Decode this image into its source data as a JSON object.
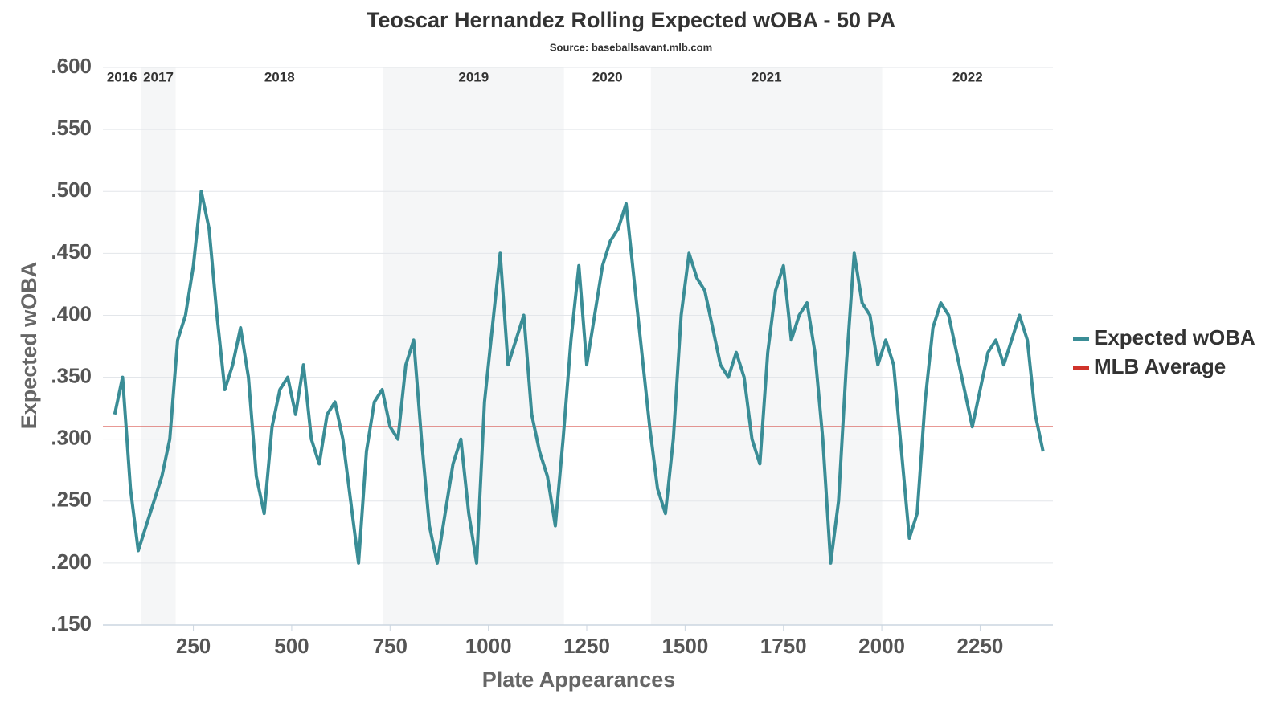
{
  "chart_data": {
    "type": "line",
    "title": "Teoscar Hernandez Rolling Expected wOBA - 50 PA",
    "subtitle": "Source: baseballsavant.mlb.com",
    "x_label": "Plate Appearances",
    "y_label": "Expected wOBA",
    "xlim": [
      20,
      2435
    ],
    "ylim": [
      0.15,
      0.6
    ],
    "xticks": [
      250,
      500,
      750,
      1000,
      1250,
      1500,
      1750,
      2000,
      2250
    ],
    "yticks": [
      {
        "value": 0.15,
        "label": ".150"
      },
      {
        "value": 0.2,
        "label": ".200"
      },
      {
        "value": 0.25,
        "label": ".250"
      },
      {
        "value": 0.3,
        "label": ".300"
      },
      {
        "value": 0.35,
        "label": ".350"
      },
      {
        "value": 0.4,
        "label": ".400"
      },
      {
        "value": 0.45,
        "label": ".450"
      },
      {
        "value": 0.5,
        "label": ".500"
      },
      {
        "value": 0.55,
        "label": ".550"
      },
      {
        "value": 0.6,
        "label": ".600"
      }
    ],
    "grid": true,
    "legend": "right",
    "seasons": [
      {
        "name": "2016",
        "start": 20,
        "end": 117,
        "shaded": false
      },
      {
        "name": "2017",
        "start": 117,
        "end": 205,
        "shaded": true
      },
      {
        "name": "2018",
        "start": 205,
        "end": 733,
        "shaded": false
      },
      {
        "name": "2019",
        "start": 733,
        "end": 1192,
        "shaded": true
      },
      {
        "name": "2020",
        "start": 1192,
        "end": 1413,
        "shaded": false
      },
      {
        "name": "2021",
        "start": 1413,
        "end": 2001,
        "shaded": true
      },
      {
        "name": "2022",
        "start": 2001,
        "end": 2435,
        "shaded": false
      }
    ],
    "reference_line": {
      "name": "MLB Average",
      "value": 0.31,
      "color": "#d0332b"
    },
    "x": [
      50,
      70,
      90,
      110,
      130,
      150,
      170,
      190,
      210,
      230,
      250,
      270,
      290,
      310,
      330,
      350,
      370,
      390,
      410,
      430,
      450,
      470,
      490,
      510,
      530,
      550,
      570,
      590,
      610,
      630,
      650,
      670,
      690,
      710,
      730,
      750,
      770,
      790,
      810,
      830,
      850,
      870,
      890,
      910,
      930,
      950,
      970,
      990,
      1010,
      1030,
      1050,
      1070,
      1090,
      1110,
      1130,
      1150,
      1170,
      1190,
      1210,
      1230,
      1250,
      1270,
      1290,
      1310,
      1330,
      1350,
      1370,
      1390,
      1410,
      1430,
      1450,
      1470,
      1490,
      1510,
      1530,
      1550,
      1570,
      1590,
      1610,
      1630,
      1650,
      1670,
      1690,
      1710,
      1730,
      1750,
      1770,
      1790,
      1810,
      1830,
      1850,
      1870,
      1890,
      1910,
      1930,
      1950,
      1970,
      1990,
      2010,
      2030,
      2050,
      2070,
      2090,
      2110,
      2130,
      2150,
      2170,
      2190,
      2210,
      2230,
      2250,
      2270,
      2290,
      2310,
      2330,
      2350,
      2370,
      2390,
      2410
    ],
    "series": [
      {
        "name": "Expected wOBA",
        "color": "#3a8d96",
        "values": [
          0.32,
          0.35,
          0.26,
          0.21,
          0.23,
          0.25,
          0.27,
          0.3,
          0.38,
          0.4,
          0.44,
          0.5,
          0.47,
          0.4,
          0.34,
          0.36,
          0.39,
          0.35,
          0.27,
          0.24,
          0.31,
          0.34,
          0.35,
          0.32,
          0.36,
          0.3,
          0.28,
          0.32,
          0.33,
          0.3,
          0.25,
          0.2,
          0.29,
          0.33,
          0.34,
          0.31,
          0.3,
          0.36,
          0.38,
          0.3,
          0.23,
          0.2,
          0.24,
          0.28,
          0.3,
          0.24,
          0.2,
          0.33,
          0.39,
          0.45,
          0.36,
          0.38,
          0.4,
          0.32,
          0.29,
          0.27,
          0.23,
          0.3,
          0.38,
          0.44,
          0.36,
          0.4,
          0.44,
          0.46,
          0.47,
          0.49,
          0.43,
          0.37,
          0.31,
          0.26,
          0.24,
          0.3,
          0.4,
          0.45,
          0.43,
          0.42,
          0.39,
          0.36,
          0.35,
          0.37,
          0.35,
          0.3,
          0.28,
          0.37,
          0.42,
          0.44,
          0.38,
          0.4,
          0.41,
          0.37,
          0.3,
          0.2,
          0.25,
          0.36,
          0.45,
          0.41,
          0.4,
          0.36,
          0.38,
          0.36,
          0.29,
          0.22,
          0.24,
          0.33,
          0.39,
          0.41,
          0.4,
          0.37,
          0.34,
          0.31,
          0.34,
          0.37,
          0.38,
          0.36,
          0.38,
          0.4,
          0.38,
          0.32,
          0.29
        ]
      }
    ]
  }
}
